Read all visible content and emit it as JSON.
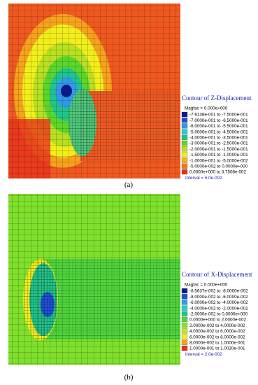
{
  "panels": [
    {
      "label": "(a)",
      "legend": {
        "title": "Contour of Z-Displacement",
        "magfac": "Magfac = 0.000e+000",
        "interval": "Interval = 5.0e-002",
        "entries": [
          {
            "label": "-7.6138e-001 to -7.5000e-001",
            "color": "#0a1a8c"
          },
          {
            "label": "-7.0000e-001 to -6.5000e-001",
            "color": "#1f4fd8"
          },
          {
            "label": "-6.0000e-001 to -5.5000e-001",
            "color": "#2f9be8"
          },
          {
            "label": "-5.0000e-001 to -4.5000e-001",
            "color": "#1fd0d0"
          },
          {
            "label": "-4.0000e-001 to -3.5000e-001",
            "color": "#1fc48a"
          },
          {
            "label": "-3.0000e-001 to -2.5000e-001",
            "color": "#5ad62a"
          },
          {
            "label": "-2.0000e-001 to -1.5000e-001",
            "color": "#b8e020"
          },
          {
            "label": "-1.5000e-001 to -1.0000e-001",
            "color": "#f2ee1a"
          },
          {
            "label": "-1.0000e-001 to -5.0000e-002",
            "color": "#f6b21a"
          },
          {
            "label": "-5.0000e-002 to 0.0000e+000",
            "color": "#f07a1a"
          },
          {
            "label": "0.0000e+000 to 3.7508e-002",
            "color": "#e8321a"
          }
        ]
      }
    },
    {
      "label": "(b)",
      "legend": {
        "title": "Contour of X-Displacement",
        "magfac": "Magfac = 0.000e+000",
        "interval": "Interval = 2.0e-002",
        "entries": [
          {
            "label": "-8.5637e-002 to -8.0000e-002",
            "color": "#0a1a8c"
          },
          {
            "label": "-8.0000e-002 to -6.0000e-002",
            "color": "#1f4fd8"
          },
          {
            "label": "-6.0000e-002 to -4.0000e-002",
            "color": "#2f9be8"
          },
          {
            "label": "-4.0000e-002 to -2.0000e-002",
            "color": "#1fd0d0"
          },
          {
            "label": "-2.0000e-002 to 0.0000e+000",
            "color": "#1fc48a"
          },
          {
            "label": "0.0000e+000 to 2.0000e-002",
            "color": "#4fd63a"
          },
          {
            "label": "2.0000e-002 to 4.0000e-002",
            "color": "#8ee02a"
          },
          {
            "label": "4.0000e-002 to 6.0000e-002",
            "color": "#c8e620"
          },
          {
            "label": "6.0000e-002 to 8.0000e-002",
            "color": "#f2ee1a"
          },
          {
            "label": "8.0000e-002 to 1.0000e-001",
            "color": "#f6a21a"
          },
          {
            "label": "1.0000e-001 to 1.0020e-001",
            "color": "#e8321a"
          }
        ]
      }
    }
  ]
}
